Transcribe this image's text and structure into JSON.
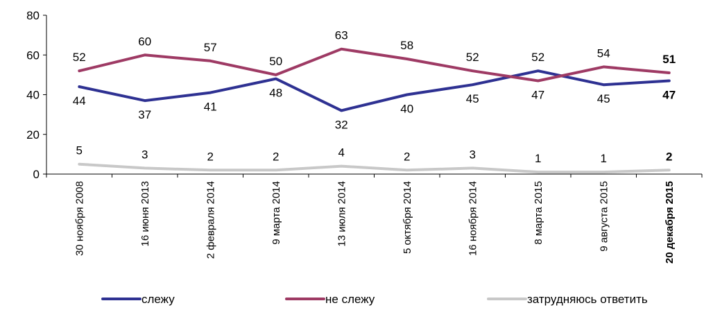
{
  "chart_data": {
    "type": "line",
    "categories": [
      "30 ноября 2008",
      "16 июня 2013",
      "2 февраля 2014",
      "9 марта 2014",
      "13 июля 2014",
      "5 октября 2014",
      "16 ноября 2014",
      "8 марта 2015",
      "9 августа 2015",
      "20 декабря 2015"
    ],
    "series": [
      {
        "name": "слежу",
        "color": "#2e3192",
        "values": [
          44,
          37,
          41,
          48,
          32,
          40,
          45,
          52,
          45,
          47
        ]
      },
      {
        "name": "не слежу",
        "color": "#9e3a64",
        "values": [
          52,
          60,
          57,
          50,
          63,
          58,
          52,
          47,
          54,
          51
        ]
      },
      {
        "name": "затрудняюсь ответить",
        "color": "#c8c8c8",
        "values": [
          5,
          3,
          2,
          2,
          4,
          2,
          3,
          1,
          1,
          2
        ]
      }
    ],
    "ylim": [
      0,
      80
    ],
    "yticks": [
      0,
      20,
      40,
      60,
      80
    ],
    "grid": false,
    "legend_position": "bottom",
    "bold_last_category": true
  }
}
